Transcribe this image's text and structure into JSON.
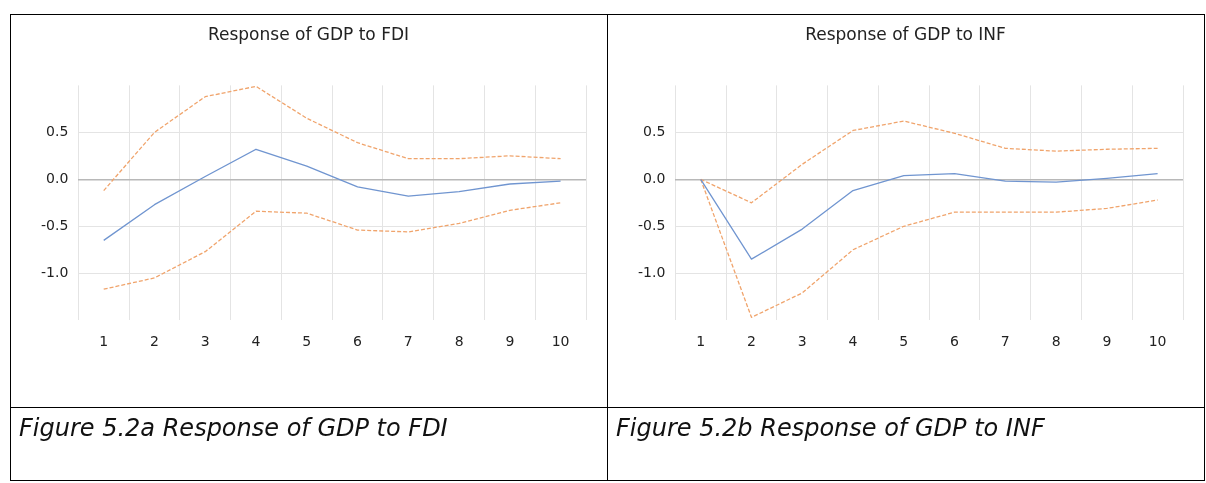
{
  "chart_data": [
    {
      "type": "line",
      "title": "Response of GDP to FDI",
      "categories": [
        "1",
        "2",
        "3",
        "4",
        "5",
        "6",
        "7",
        "8",
        "9",
        "10"
      ],
      "series": [
        {
          "color": "#7095d0",
          "line_style": "solid",
          "values": [
            -0.65,
            -0.27,
            0.03,
            0.32,
            0.14,
            -0.08,
            -0.18,
            -0.13,
            -0.05,
            -0.02
          ]
        },
        {
          "color": "#f0a46c",
          "line_style": "dashed",
          "values": [
            -0.12,
            0.5,
            0.88,
            0.99,
            0.65,
            0.39,
            0.22,
            0.22,
            0.25,
            0.22
          ]
        },
        {
          "color": "#f0a46c",
          "line_style": "dashed",
          "values": [
            -1.17,
            -1.05,
            -0.77,
            -0.34,
            -0.36,
            -0.54,
            -0.56,
            -0.47,
            -0.33,
            -0.25
          ]
        }
      ],
      "ylim": [
        -1.5,
        1.0
      ],
      "yticks": [
        {
          "value": -1.0,
          "label": "-1.0"
        },
        {
          "value": -0.5,
          "label": "-0.5"
        },
        {
          "value": 0,
          "label": "0.0"
        },
        {
          "value": 0.5,
          "label": "0.5"
        }
      ],
      "grid": true,
      "legend": false,
      "marker": "none",
      "annotations": [
        "Figure 5.2a Response of GDP to FDI"
      ]
    },
    {
      "type": "line",
      "title": "Response of GDP to INF",
      "categories": [
        "1",
        "2",
        "3",
        "4",
        "5",
        "6",
        "7",
        "8",
        "9",
        "10"
      ],
      "series": [
        {
          "color": "#7095d0",
          "line_style": "solid",
          "values": [
            0,
            -0.85,
            -0.53,
            -0.12,
            0.04,
            0.06,
            -0.02,
            -0.03,
            0.01,
            0.06
          ]
        },
        {
          "color": "#f0a46c",
          "line_style": "dashed",
          "values": [
            0,
            -0.25,
            0.16,
            0.52,
            0.62,
            0.49,
            0.33,
            0.3,
            0.32,
            0.33
          ]
        },
        {
          "color": "#f0a46c",
          "line_style": "dashed",
          "values": [
            0,
            -1.47,
            -1.21,
            -0.75,
            -0.5,
            -0.35,
            -0.35,
            -0.35,
            -0.31,
            -0.22
          ]
        }
      ],
      "ylim": [
        -1.5,
        1.0
      ],
      "yticks": [
        {
          "value": -1.0,
          "label": "-1.0"
        },
        {
          "value": -0.5,
          "label": "-0.5"
        },
        {
          "value": 0,
          "label": "0.0"
        },
        {
          "value": 0.5,
          "label": "0.5"
        }
      ],
      "grid": true,
      "legend": false,
      "marker": "none",
      "annotations": [
        "Figure 5.2b Response of GDP to INF"
      ]
    }
  ]
}
